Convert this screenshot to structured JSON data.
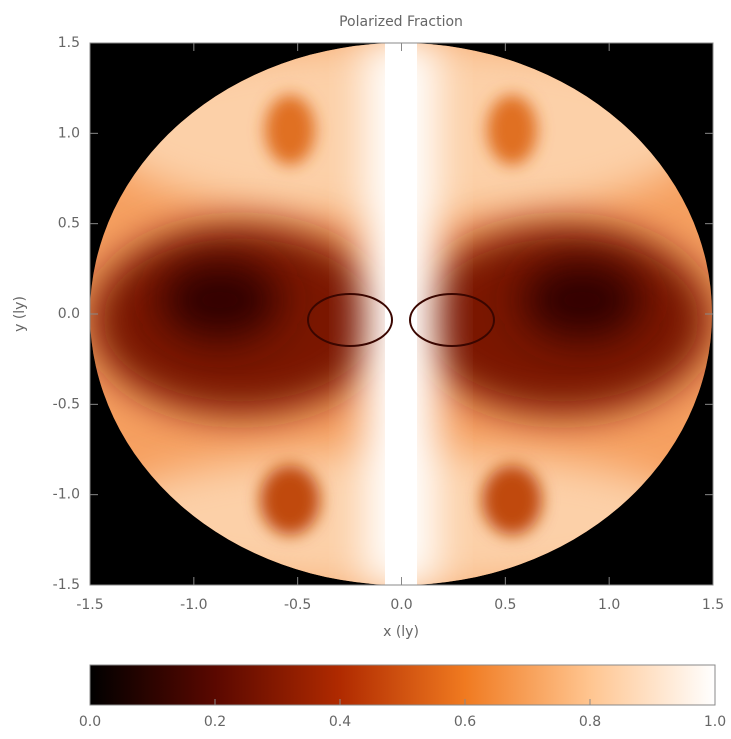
{
  "chart_data": {
    "type": "heatmap",
    "title": "Polarized Fraction",
    "xlabel": "x (ly)",
    "ylabel": "y (ly)",
    "xlim": [
      -1.5,
      1.5
    ],
    "ylim": [
      -1.5,
      1.5
    ],
    "xticks": [
      -1.5,
      {
        "value": -1,
        "label": "-1.0"
      },
      -0.5,
      {
        "value": 0,
        "label": "0.0"
      },
      0.5,
      {
        "value": 1,
        "label": "1.0"
      },
      1.5
    ],
    "yticks": [
      -1.5,
      {
        "value": -1,
        "label": "-1.0"
      },
      -0.5,
      {
        "value": 0,
        "label": "0.0"
      },
      0.5,
      {
        "value": 1,
        "label": "1.0"
      },
      1.5
    ],
    "colorbar": {
      "clim": [
        0,
        1
      ],
      "ticks": [
        {
          "value": 0,
          "label": "0.0"
        },
        0.2,
        0.4,
        0.6,
        0.8,
        {
          "value": 1,
          "label": "1.0"
        }
      ],
      "colormap": [
        "#000000",
        "#5a0800",
        "#b02a00",
        "#f07a20",
        "#ffc590",
        "#ffffff"
      ]
    }
  }
}
